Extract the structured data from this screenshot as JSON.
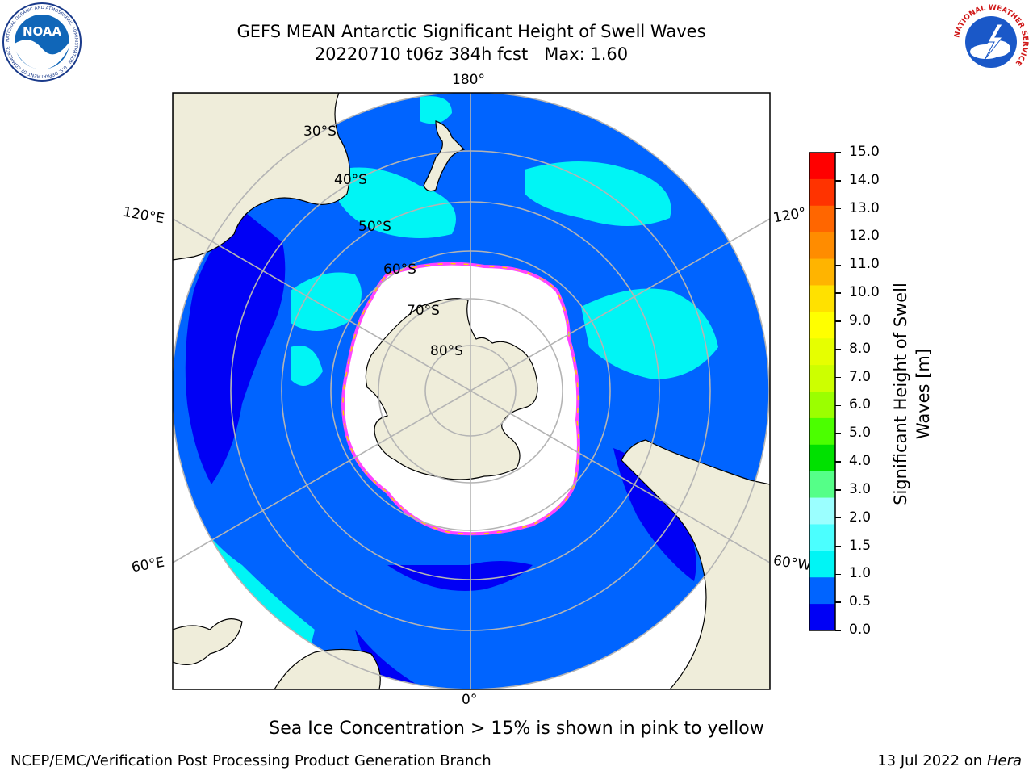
{
  "header": {
    "title_line1": "GEFS MEAN Antarctic Significant Height of Swell Waves",
    "title_line2": "20220710 t06z 384h fcst   Max: 1.60"
  },
  "logos": {
    "left": {
      "name": "NOAA",
      "text": "NOAA",
      "ring_text": "NATIONAL OCEANIC AND ATMOSPHERIC ADMINISTRATION · U.S. DEPARTMENT OF COMMERCE"
    },
    "right": {
      "name": "National Weather Service",
      "ring_text": "NATIONAL WEATHER SERVICE"
    }
  },
  "map": {
    "projection": "south-polar-stereographic",
    "longitude_labels": {
      "top": "180°",
      "bottom": "0°",
      "left_upper": "120°E",
      "left_lower": "60°E",
      "right_upper": "120°",
      "right_lower": "60°W"
    },
    "latitude_labels": [
      "30°S",
      "40°S",
      "50°S",
      "60°S",
      "70°S",
      "80°S"
    ],
    "colors": {
      "land": "#efedda",
      "ocean_low": "#0064ff",
      "ocean_lowest": "#0000f5",
      "swell_mid": "#00f5f5",
      "ice": "#ffffff",
      "ice_edge": "#ff44ff",
      "ice_yellow": "#ffd000",
      "grid": "#b4b4b4"
    }
  },
  "colorbar": {
    "label": "Significant Height of Swell Waves [m]",
    "label_line1": "Significant Height of Swell",
    "label_line2": "Waves [m]",
    "ticks": [
      "15.0",
      "14.0",
      "13.0",
      "12.0",
      "11.0",
      "10.0",
      "9.0",
      "8.0",
      "7.0",
      "6.0",
      "5.0",
      "4.0",
      "3.0",
      "2.0",
      "1.5",
      "1.0",
      "0.5",
      "0.0"
    ],
    "colors_top_to_bottom": [
      "#ff0000",
      "#ff3300",
      "#ff6600",
      "#ff8c00",
      "#ffb400",
      "#ffe100",
      "#ffff00",
      "#e6ff00",
      "#cdff00",
      "#9bff00",
      "#4bff00",
      "#00e100",
      "#55ff88",
      "#9bffff",
      "#4bffff",
      "#00f5f5",
      "#0064ff",
      "#0000f5"
    ]
  },
  "footer": {
    "note": "Sea Ice Concentration > 15% is shown in pink to yellow",
    "left": "NCEP/EMC/Verification Post Processing Product Generation Branch",
    "right_prefix": "13 Jul 2022 on ",
    "right_system": "Hera"
  }
}
